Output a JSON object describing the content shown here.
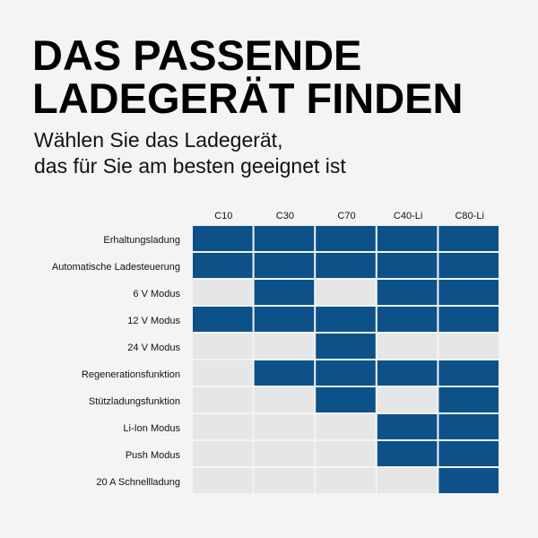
{
  "header": {
    "title": [
      "DAS PASSENDE",
      "LADEGERÄT FINDEN"
    ],
    "subtitle": [
      "Wählen Sie das Ladegerät,",
      "das für Sie am besten geeignet ist"
    ]
  },
  "table": {
    "columns": [
      "C10",
      "C30",
      "C70",
      "C40-Li",
      "C80-Li"
    ],
    "filled_color": "#0d5189",
    "empty_color": "#e6e6e6",
    "rows": [
      {
        "label": "Erhaltungsladung",
        "values": [
          true,
          true,
          true,
          true,
          true
        ]
      },
      {
        "label": "Automatische Ladesteuerung",
        "values": [
          true,
          true,
          true,
          true,
          true
        ]
      },
      {
        "label": "6 V Modus",
        "values": [
          false,
          true,
          false,
          true,
          true
        ]
      },
      {
        "label": "12 V Modus",
        "values": [
          true,
          true,
          true,
          true,
          true
        ]
      },
      {
        "label": "24 V Modus",
        "values": [
          false,
          false,
          true,
          false,
          false
        ]
      },
      {
        "label": "Regenerationsfunktion",
        "values": [
          false,
          true,
          true,
          true,
          true
        ]
      },
      {
        "label": "Stützladungsfunktion",
        "values": [
          false,
          false,
          true,
          false,
          true
        ]
      },
      {
        "label": "Li-Ion Modus",
        "values": [
          false,
          false,
          false,
          true,
          true
        ]
      },
      {
        "label": "Push Modus",
        "values": [
          false,
          false,
          false,
          true,
          true
        ]
      },
      {
        "label": "20 A Schnellladung",
        "values": [
          false,
          false,
          false,
          false,
          true
        ]
      }
    ]
  }
}
